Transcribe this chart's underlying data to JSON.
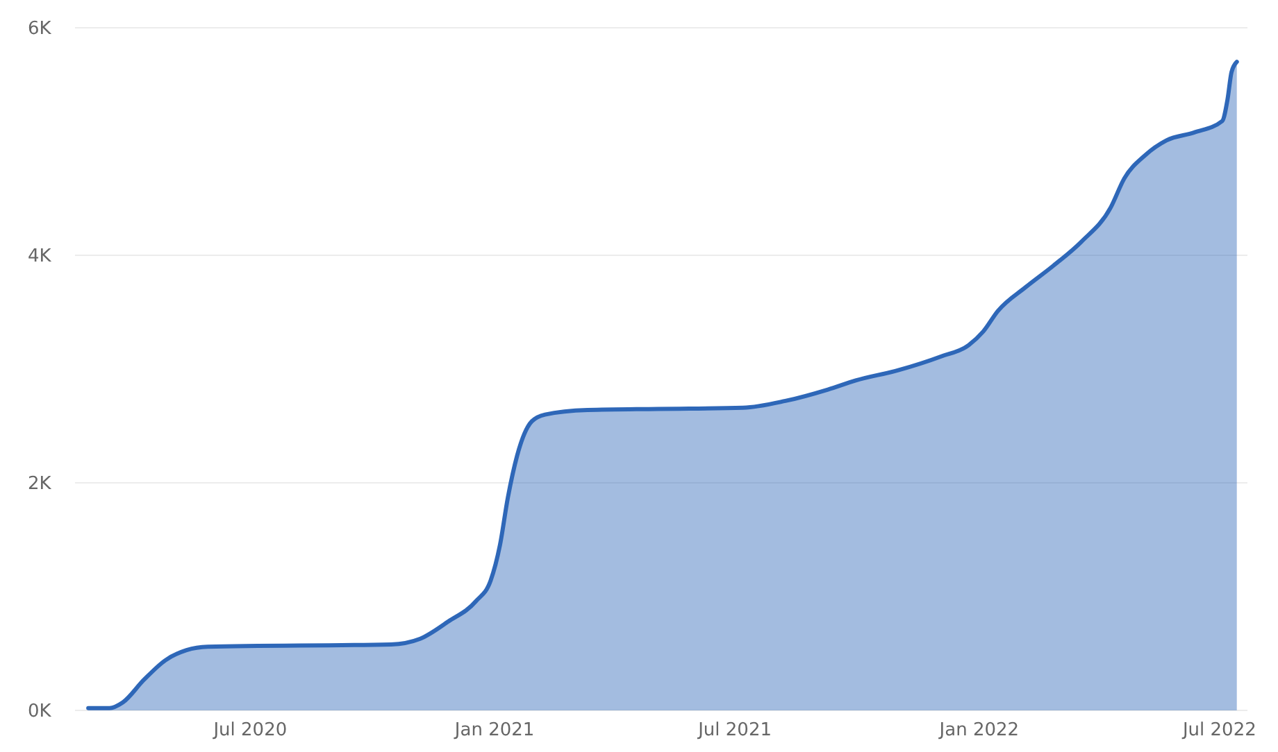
{
  "chart_data": {
    "type": "area",
    "x": [
      "2020-03-01",
      "2020-03-17",
      "2020-03-27",
      "2020-04-12",
      "2020-04-28",
      "2020-05-14",
      "2020-05-30",
      "2020-10-15",
      "2020-11-06",
      "2020-11-27",
      "2020-12-18",
      "2020-12-29",
      "2021-01-05",
      "2021-01-11",
      "2021-01-18",
      "2021-01-29",
      "2021-02-08",
      "2021-03-12",
      "2021-05-04",
      "2021-07-07",
      "2021-08-08",
      "2021-09-09",
      "2021-09-30",
      "2021-11-01",
      "2021-12-03",
      "2021-12-24",
      "2022-01-04",
      "2022-01-15",
      "2022-02-05",
      "2022-02-26",
      "2022-03-19",
      "2022-04-10",
      "2022-04-20",
      "2022-05-06",
      "2022-05-22",
      "2022-06-12",
      "2022-07-03",
      "2022-07-07",
      "2022-07-10",
      "2022-07-14"
    ],
    "series": [
      {
        "color": "#2e67b8",
        "values": [
          20,
          20,
          70,
          270,
          440,
          530,
          560,
          580,
          630,
          780,
          960,
          1140,
          1450,
          1870,
          2240,
          2540,
          2600,
          2640,
          2650,
          2660,
          2720,
          2820,
          2900,
          2990,
          3110,
          3210,
          3330,
          3510,
          3720,
          3910,
          4120,
          4420,
          4670,
          4880,
          5010,
          5080,
          5180,
          5370,
          5610,
          5700
        ]
      }
    ],
    "xlim": [
      "2020-02-20",
      "2022-07-22"
    ],
    "ylim": [
      0,
      6000
    ],
    "xticks": [
      {
        "value": "2020-07-01",
        "label": "Jul 2020"
      },
      {
        "value": "2021-01-01",
        "label": "Jan 2021"
      },
      {
        "value": "2021-07-01",
        "label": "Jul 2021"
      },
      {
        "value": "2022-01-01",
        "label": "Jan 2022"
      },
      {
        "value": "2022-07-01",
        "label": "Jul 2022"
      }
    ],
    "yticks": [
      {
        "value": 0,
        "label": "0K"
      },
      {
        "value": 2000,
        "label": "2K"
      },
      {
        "value": 4000,
        "label": "4K"
      },
      {
        "value": 6000,
        "label": "6K"
      }
    ],
    "grid": "y"
  }
}
